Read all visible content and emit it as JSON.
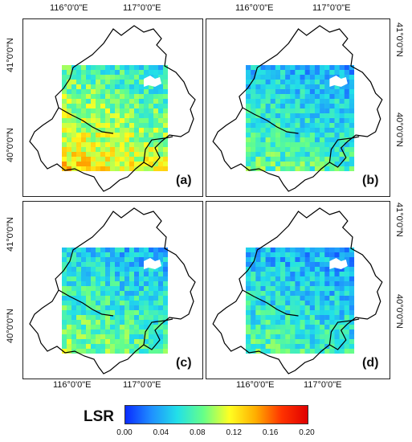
{
  "lon_ticks": [
    "116°0'0\"E",
    "117°0'0\"E"
  ],
  "lat_ticks": [
    "41°0'0\"N",
    "40°0'0\"N"
  ],
  "panels": [
    {
      "label": "(a)",
      "mean_lsr": 0.1
    },
    {
      "label": "(b)",
      "mean_lsr": 0.065
    },
    {
      "label": "(c)",
      "mean_lsr": 0.07
    },
    {
      "label": "(d)",
      "mean_lsr": 0.06
    }
  ],
  "colorbar": {
    "title": "LSR",
    "ticks": [
      "0.00",
      "0.04",
      "0.08",
      "0.12",
      "0.16",
      "0.20"
    ],
    "min": 0.0,
    "max": 0.2,
    "colors": [
      "#0a2bff",
      "#1f8fff",
      "#22e0e8",
      "#66ff88",
      "#ffff22",
      "#ffae00",
      "#ff3300",
      "#e00000"
    ]
  }
}
